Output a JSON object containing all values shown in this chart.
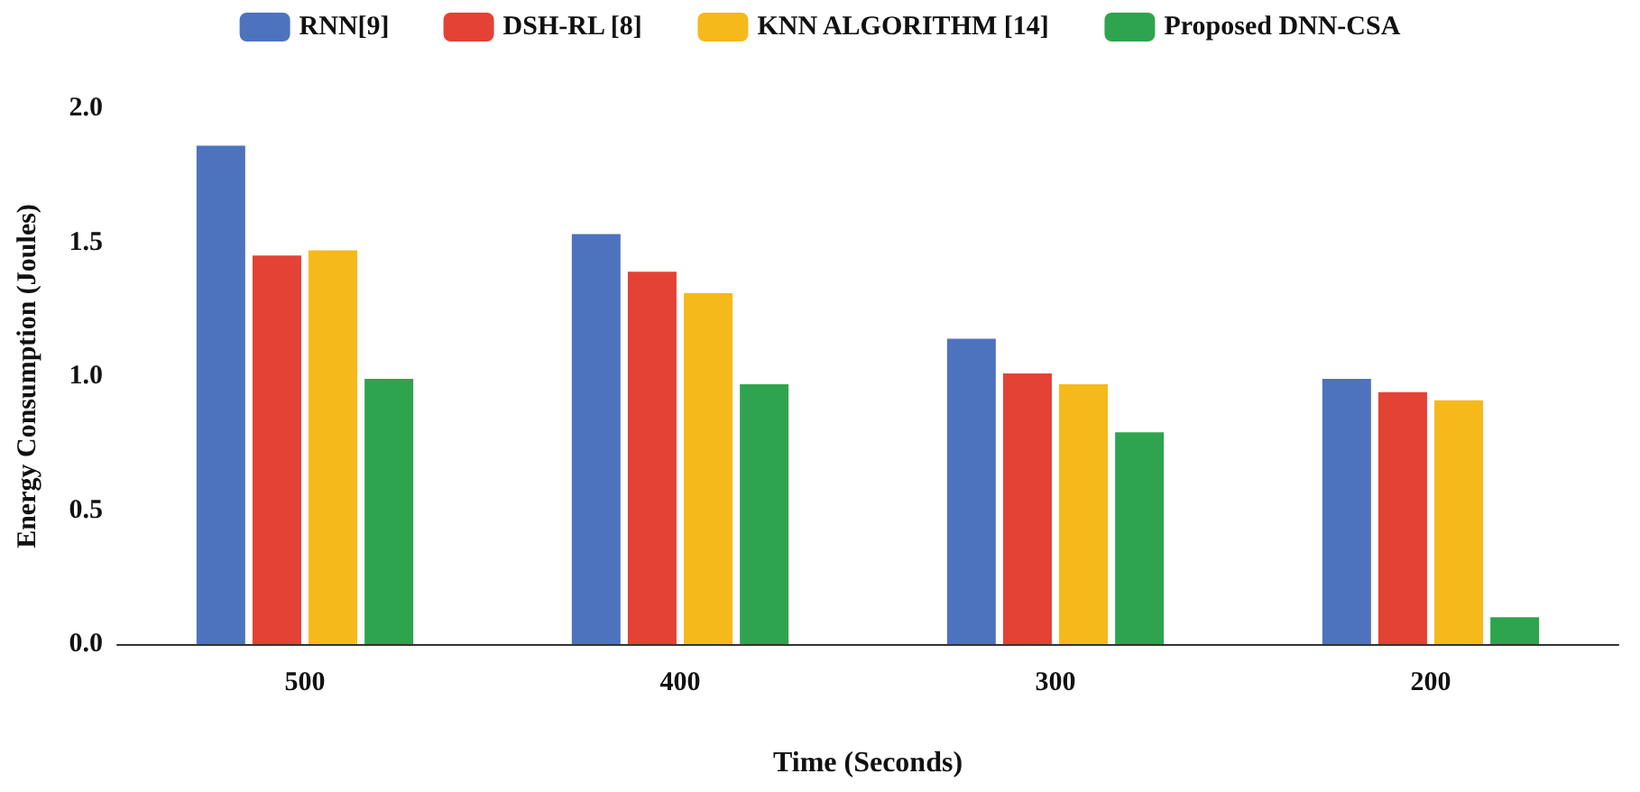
{
  "chart_data": {
    "type": "bar",
    "xlabel": "Time (Seconds)",
    "ylabel": "Energy Consumption (Joules)",
    "categories": [
      "500",
      "400",
      "300",
      "200"
    ],
    "series": [
      {
        "name": "RNN[9]",
        "color": "#4e73be",
        "values": [
          1.86,
          1.53,
          1.14,
          0.99
        ]
      },
      {
        "name": "DSH-RL [8]",
        "color": "#e34234",
        "values": [
          1.45,
          1.39,
          1.01,
          0.94
        ]
      },
      {
        "name": "KNN ALGORITHM [14]",
        "color": "#f6b91b",
        "values": [
          1.47,
          1.31,
          0.97,
          0.91
        ]
      },
      {
        "name": "Proposed DNN-CSA",
        "color": "#2ea44f",
        "values": [
          0.99,
          0.97,
          0.79,
          0.1
        ]
      }
    ],
    "ylim": [
      0,
      2
    ],
    "yticks": [
      {
        "value": 0,
        "label": "0.0"
      },
      {
        "value": 0.5,
        "label": "0.5"
      },
      {
        "value": 1,
        "label": "1.0"
      },
      {
        "value": 1.5,
        "label": "1.5"
      },
      {
        "value": 2,
        "label": "2.0"
      }
    ],
    "grid": false,
    "legend": "top"
  }
}
